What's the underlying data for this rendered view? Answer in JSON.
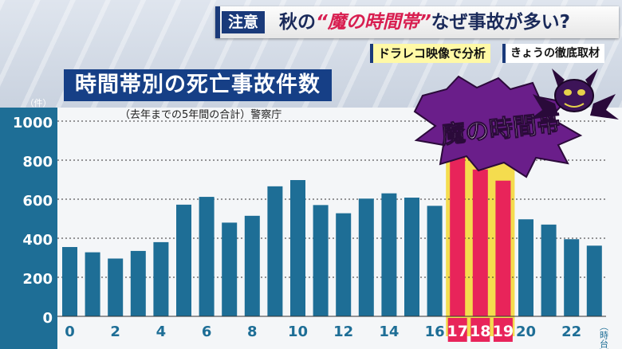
{
  "header": {
    "badge": "注意",
    "headline_pre": "秋の",
    "headline_red": "“魔の時間帯”",
    "headline_post": "なぜ事故が多い?",
    "tag_analysis": "ドラレコ映像で分析",
    "tag_coverage": "きょうの徹底取材"
  },
  "callout": "魔の時間帯",
  "colors": {
    "bar": "#1e6e96",
    "highlight_bar": "#e8245a",
    "highlight_band": "#f4dc4e",
    "title_bg": "#163f86",
    "burst": "#6a1e8a"
  },
  "chart_data": {
    "type": "bar",
    "title": "時間帯別の死亡事故件数",
    "subtitle": "（去年までの5年間の合計）警察庁",
    "y_unit": "（件）",
    "x_unit": "（時台）",
    "ylim": [
      0,
      1000
    ],
    "yticks": [
      0,
      200,
      400,
      600,
      800,
      1000
    ],
    "grid": true,
    "categories": [
      0,
      1,
      2,
      3,
      4,
      5,
      6,
      7,
      8,
      9,
      10,
      11,
      12,
      13,
      14,
      15,
      16,
      17,
      18,
      19,
      20,
      21,
      22,
      23
    ],
    "xtick_labels": [
      "0",
      "2",
      "4",
      "6",
      "8",
      "10",
      "12",
      "14",
      "16",
      "17",
      "18",
      "19",
      "20",
      "22"
    ],
    "xtick_positions": [
      0,
      2,
      4,
      6,
      8,
      10,
      12,
      14,
      16,
      17,
      18,
      19,
      20,
      22
    ],
    "values": [
      355,
      328,
      296,
      335,
      380,
      572,
      612,
      480,
      515,
      666,
      698,
      570,
      528,
      603,
      630,
      608,
      566,
      856,
      752,
      695,
      497,
      470,
      395,
      362
    ],
    "highlight": [
      17,
      18,
      19
    ]
  }
}
